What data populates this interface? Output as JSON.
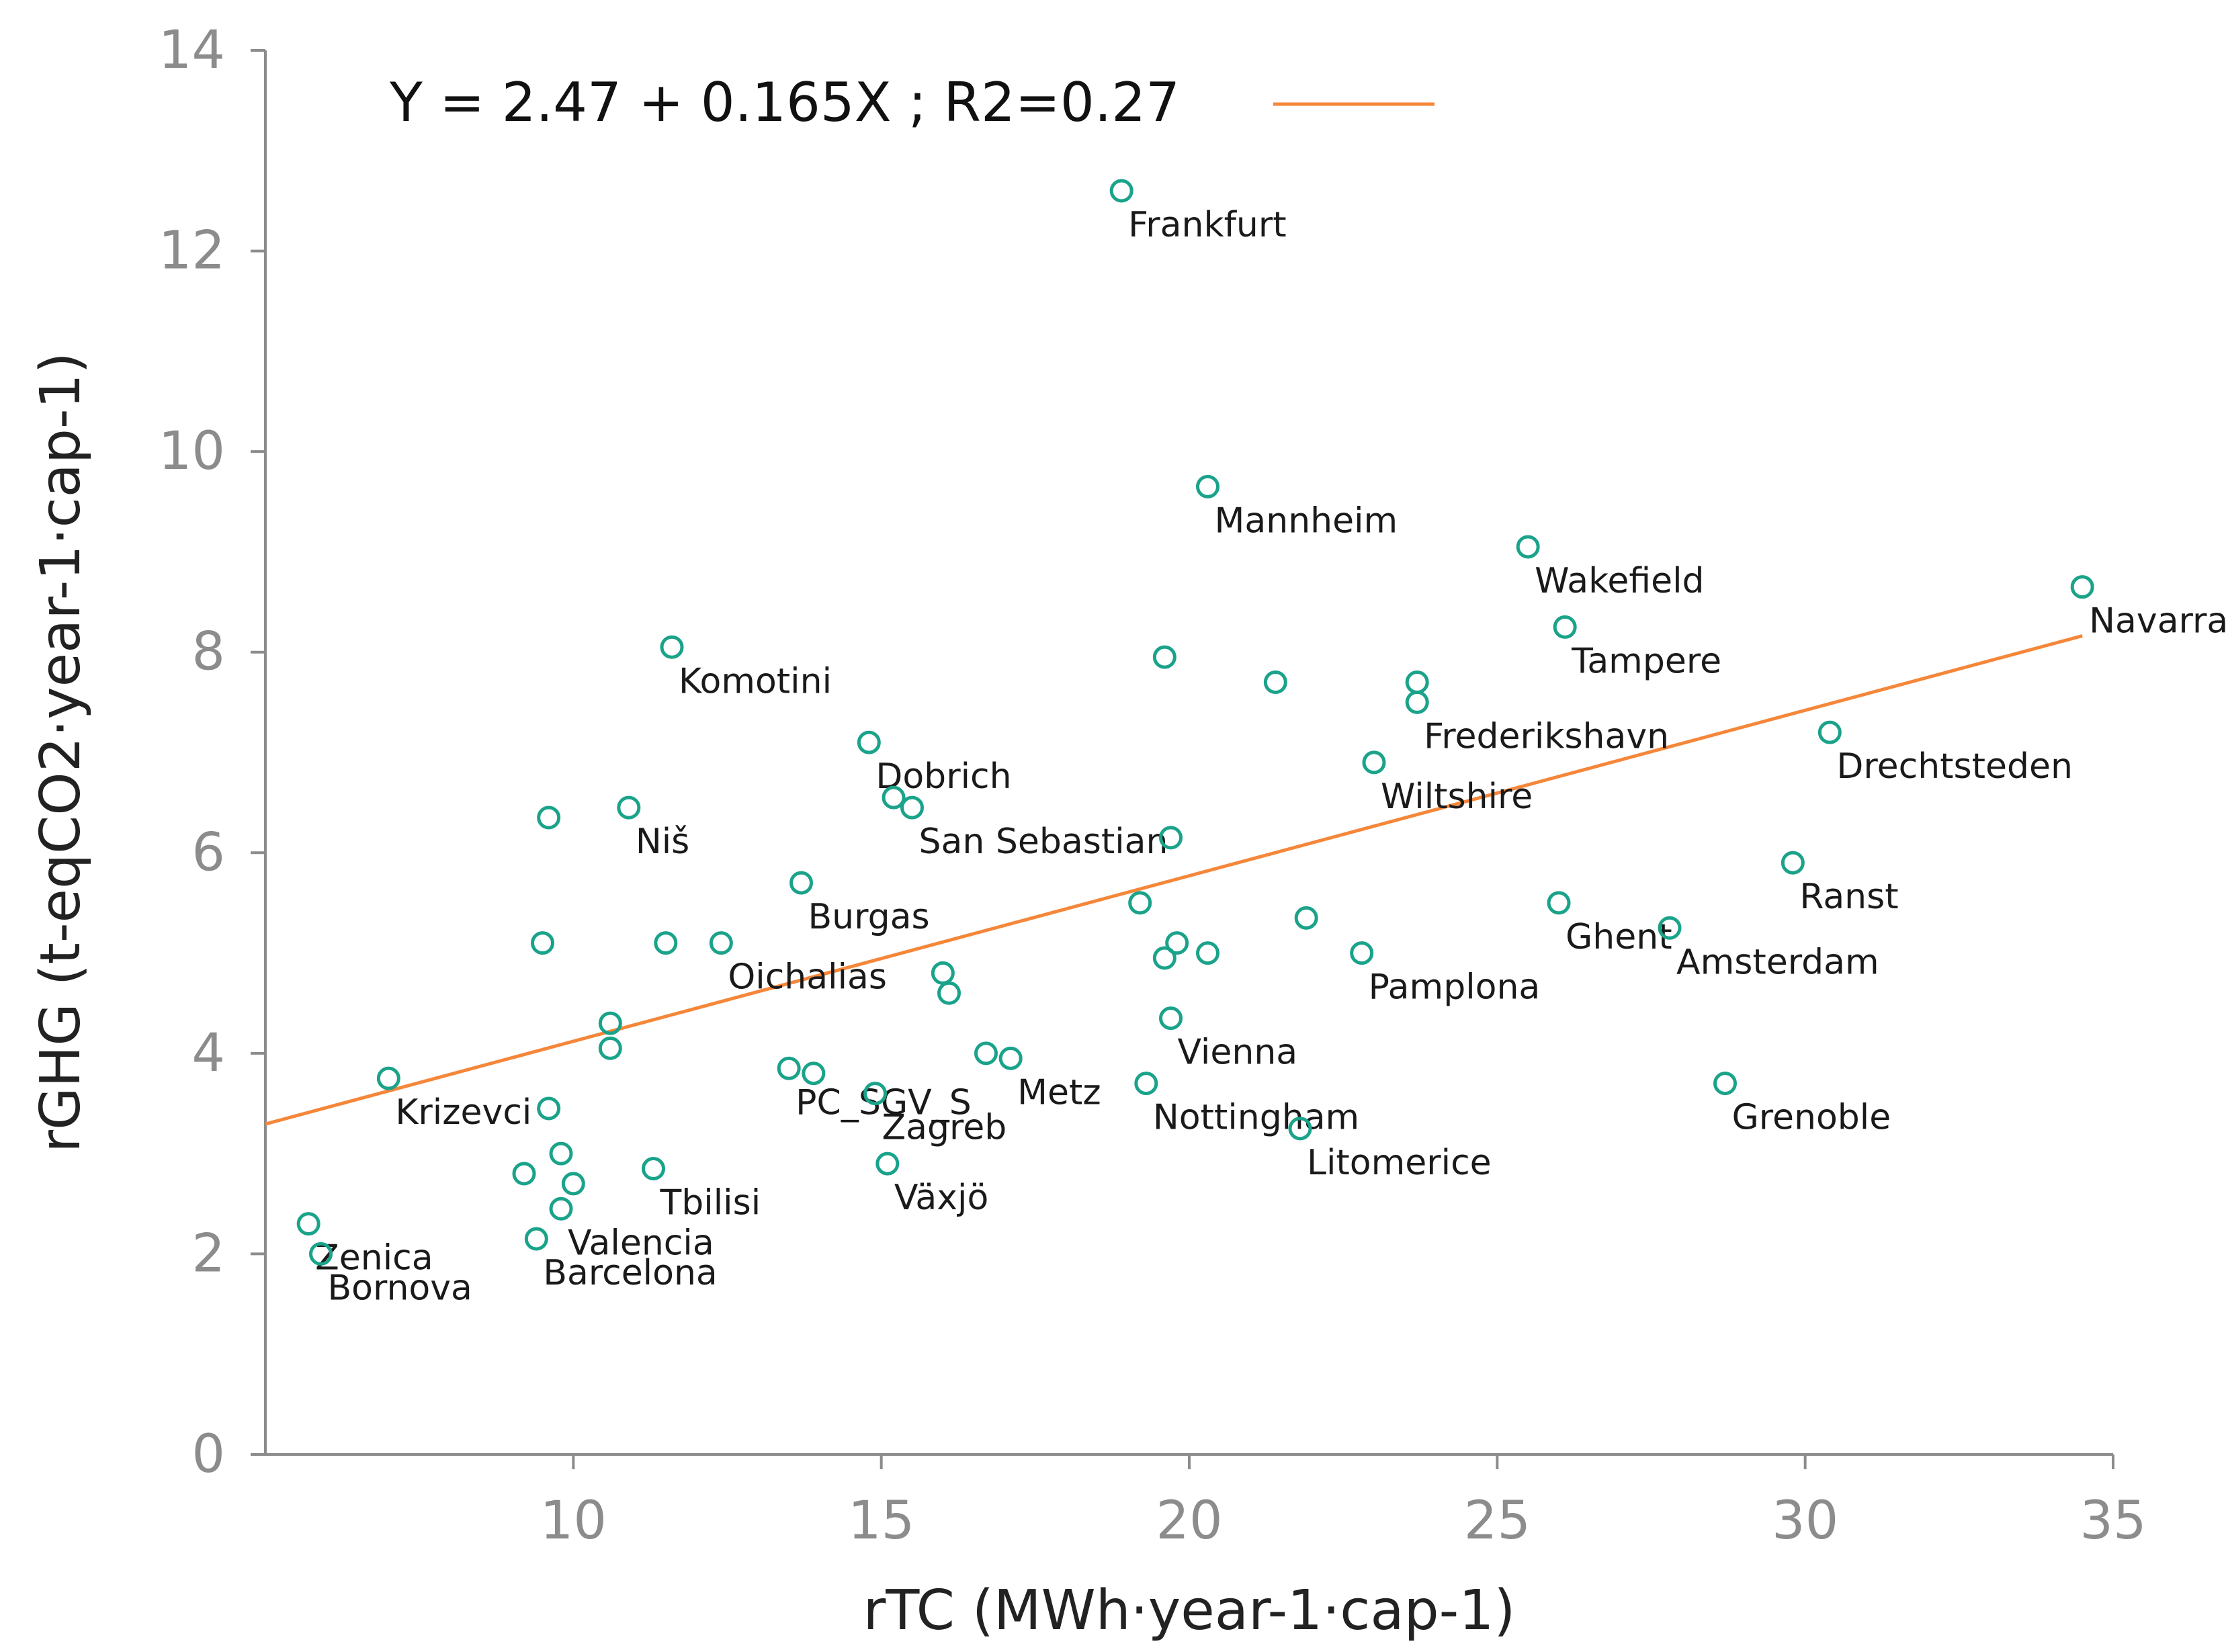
{
  "colors": {
    "points": "#1aa38a",
    "fit_line": "#f5873a",
    "axis": "#8c8c8c",
    "ticks_text": "#8c8c8c"
  },
  "chart_data": {
    "type": "scatter",
    "xlabel": "rTC (MWh·year-1·cap-1)",
    "ylabel": "rGHG (t-eqCO2·year-1·cap-1)",
    "xlim": [
      5,
      35
    ],
    "ylim": [
      0,
      14
    ],
    "x_ticks": [
      10,
      15,
      20,
      25,
      30,
      35
    ],
    "y_ticks": [
      0,
      2,
      4,
      6,
      8,
      10,
      12,
      14
    ],
    "grid": false,
    "legend": {
      "label": "Y = 2.47 + 0.165X ; R2=0.27",
      "placement": "top-left"
    },
    "fit": {
      "intercept": 2.47,
      "slope": 0.165,
      "r2": 0.27,
      "x_range": [
        5,
        34.5
      ]
    },
    "points": [
      {
        "x": 18.9,
        "y": 12.6,
        "label": "Frankfurt"
      },
      {
        "x": 20.3,
        "y": 9.65,
        "label": "Mannheim"
      },
      {
        "x": 25.5,
        "y": 9.05,
        "label": "Wakefield"
      },
      {
        "x": 26.1,
        "y": 8.25,
        "label": "Tampere"
      },
      {
        "x": 34.5,
        "y": 8.65,
        "label": "Navarra"
      },
      {
        "x": 11.6,
        "y": 8.05,
        "label": "Komotini"
      },
      {
        "x": 19.6,
        "y": 7.95,
        "label": ""
      },
      {
        "x": 21.4,
        "y": 7.7,
        "label": ""
      },
      {
        "x": 23.7,
        "y": 7.7,
        "label": ""
      },
      {
        "x": 23.7,
        "y": 7.5,
        "label": "Frederikshavn"
      },
      {
        "x": 23.0,
        "y": 6.9,
        "label": "Wiltshire"
      },
      {
        "x": 30.4,
        "y": 7.2,
        "label": "Drechtsteden"
      },
      {
        "x": 14.8,
        "y": 7.1,
        "label": "Dobrich"
      },
      {
        "x": 15.2,
        "y": 6.55,
        "label": ""
      },
      {
        "x": 15.5,
        "y": 6.45,
        "label": "San Sebastian"
      },
      {
        "x": 19.7,
        "y": 6.15,
        "label": ""
      },
      {
        "x": 10.9,
        "y": 6.45,
        "label": "Niš"
      },
      {
        "x": 9.6,
        "y": 6.35,
        "label": ""
      },
      {
        "x": 13.7,
        "y": 5.7,
        "label": "Burgas"
      },
      {
        "x": 29.8,
        "y": 5.9,
        "label": "Ranst"
      },
      {
        "x": 19.2,
        "y": 5.5,
        "label": ""
      },
      {
        "x": 21.9,
        "y": 5.35,
        "label": ""
      },
      {
        "x": 26.0,
        "y": 5.5,
        "label": "Ghent"
      },
      {
        "x": 27.8,
        "y": 5.25,
        "label": "Amsterdam"
      },
      {
        "x": 19.8,
        "y": 5.1,
        "label": ""
      },
      {
        "x": 20.3,
        "y": 5.0,
        "label": ""
      },
      {
        "x": 19.6,
        "y": 4.95,
        "label": ""
      },
      {
        "x": 22.8,
        "y": 5.0,
        "label": "Pamplona"
      },
      {
        "x": 9.5,
        "y": 5.1,
        "label": ""
      },
      {
        "x": 11.5,
        "y": 5.1,
        "label": ""
      },
      {
        "x": 12.4,
        "y": 5.1,
        "label": "Oichalias"
      },
      {
        "x": 16.0,
        "y": 4.8,
        "label": ""
      },
      {
        "x": 16.1,
        "y": 4.6,
        "label": ""
      },
      {
        "x": 19.7,
        "y": 4.35,
        "label": "Vienna"
      },
      {
        "x": 10.6,
        "y": 4.3,
        "label": ""
      },
      {
        "x": 10.6,
        "y": 4.05,
        "label": ""
      },
      {
        "x": 13.5,
        "y": 3.85,
        "label": "PC_SGV_S"
      },
      {
        "x": 13.9,
        "y": 3.8,
        "label": ""
      },
      {
        "x": 7.0,
        "y": 3.75,
        "label": "Krizevci"
      },
      {
        "x": 9.6,
        "y": 3.45,
        "label": ""
      },
      {
        "x": 16.7,
        "y": 4.0,
        "label": ""
      },
      {
        "x": 17.1,
        "y": 3.95,
        "label": "Metz"
      },
      {
        "x": 14.9,
        "y": 3.6,
        "label": "Zagreb"
      },
      {
        "x": 19.3,
        "y": 3.7,
        "label": "Nottingham"
      },
      {
        "x": 21.8,
        "y": 3.25,
        "label": "Litomerice"
      },
      {
        "x": 28.7,
        "y": 3.7,
        "label": "Grenoble"
      },
      {
        "x": 9.8,
        "y": 3.0,
        "label": ""
      },
      {
        "x": 9.2,
        "y": 2.8,
        "label": ""
      },
      {
        "x": 10.0,
        "y": 2.7,
        "label": ""
      },
      {
        "x": 11.3,
        "y": 2.85,
        "label": "Tbilisi"
      },
      {
        "x": 15.1,
        "y": 2.9,
        "label": "Växjö"
      },
      {
        "x": 9.8,
        "y": 2.45,
        "label": "Valencia"
      },
      {
        "x": 9.4,
        "y": 2.15,
        "label": "Barcelona"
      },
      {
        "x": 5.7,
        "y": 2.3,
        "label": "Zenica"
      },
      {
        "x": 5.9,
        "y": 2.0,
        "label": "Bornova"
      }
    ]
  }
}
